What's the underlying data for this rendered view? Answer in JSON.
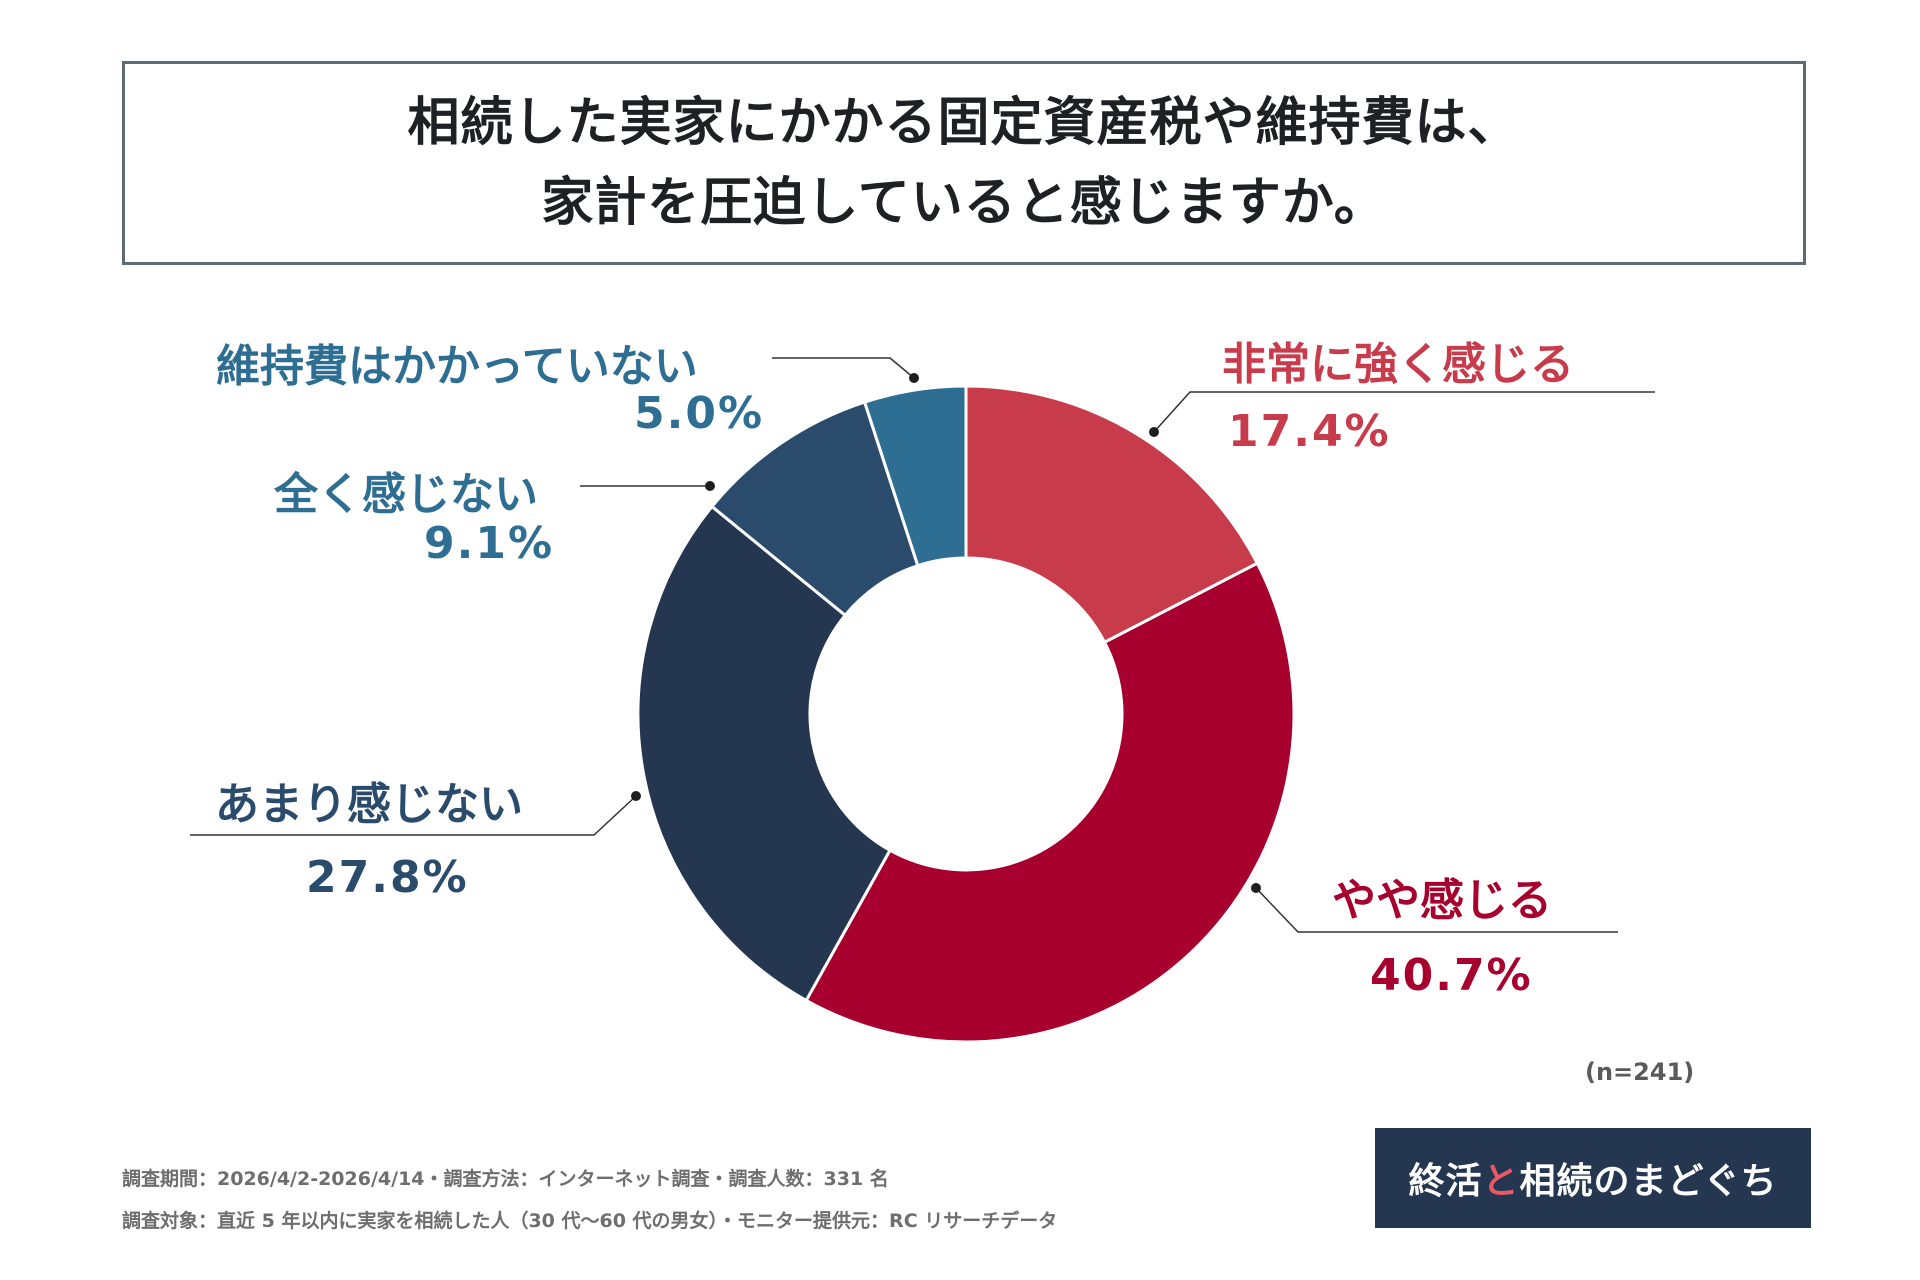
{
  "title": {
    "line1": "相続した実家にかかる固定資産税や維持費は、",
    "line2": "家計を圧迫していると感じますか。"
  },
  "chart_data": {
    "type": "pie",
    "donut": true,
    "title": "相続した実家にかかる固定資産税や維持費は、家計を圧迫していると感じますか。",
    "categories": [
      "非常に強く感じる",
      "やや感じる",
      "あまり感じない",
      "全く感じない",
      "維持費はかかっていない"
    ],
    "values": [
      17.4,
      40.7,
      27.8,
      9.1,
      5.0
    ],
    "value_labels": [
      "17.4%",
      "40.7%",
      "27.8%",
      "9.1%",
      "5.0%"
    ],
    "colors": [
      "#c83b4b",
      "#a8002e",
      "#243650",
      "#2a4b6c",
      "#2e6e93"
    ],
    "label_colors": [
      "#c83b4b",
      "#a8002e",
      "#2a4b6c",
      "#2e6e93",
      "#2e6e93"
    ],
    "n_label": "(n=241)"
  },
  "footer": {
    "line1": "調査期間：2026/4/2-2026/4/14・調査方法：インターネット調査・調査人数：331 名",
    "line2": "調査対象：直近 5 年以内に実家を相続した人（30 代〜60 代の男女）・モニター提供元：RC リサーチデータ"
  },
  "logo": {
    "part1": "終活",
    "mark": "と",
    "part2": "相続のまどぐち"
  }
}
